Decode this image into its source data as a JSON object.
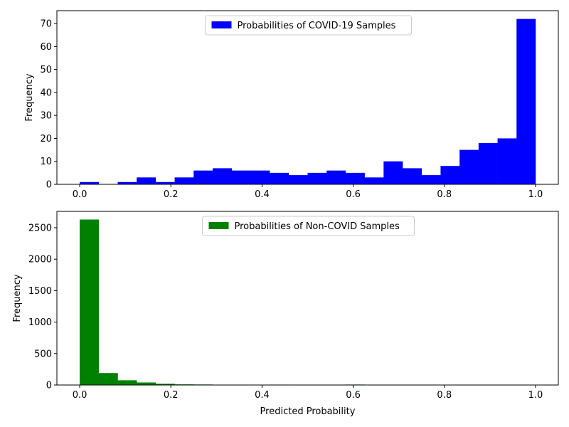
{
  "chart_data": [
    {
      "type": "bar",
      "xlabel": "",
      "ylabel": "Frequency",
      "xlim": [
        -0.05,
        1.05
      ],
      "ylim": [
        0,
        75.6
      ],
      "xticks": [
        0.0,
        0.2,
        0.4,
        0.6,
        0.8,
        1.0
      ],
      "xtick_labels": [
        "0.0",
        "0.2",
        "0.4",
        "0.6",
        "0.8",
        "1.0"
      ],
      "yticks": [
        0,
        10,
        20,
        30,
        40,
        50,
        60,
        70
      ],
      "ytick_labels": [
        "0",
        "10",
        "20",
        "30",
        "40",
        "50",
        "60",
        "70"
      ],
      "legend": "upper-center",
      "grid": false,
      "bin_range": [
        0,
        1
      ],
      "series": [
        {
          "name": "Probabilities of COVID-19 Samples",
          "color": "#0000ff",
          "values": [
            1,
            0,
            1,
            3,
            1,
            3,
            6,
            7,
            6,
            6,
            5,
            4,
            5,
            6,
            5,
            3,
            10,
            7,
            4,
            8,
            15,
            18,
            20,
            72
          ]
        }
      ]
    },
    {
      "type": "bar",
      "xlabel": "Predicted Probability",
      "ylabel": "Frequency",
      "xlim": [
        -0.05,
        1.05
      ],
      "ylim": [
        0,
        2760
      ],
      "xticks": [
        0.0,
        0.2,
        0.4,
        0.6,
        0.8,
        1.0
      ],
      "xtick_labels": [
        "0.0",
        "0.2",
        "0.4",
        "0.6",
        "0.8",
        "1.0"
      ],
      "yticks": [
        0,
        500,
        1000,
        1500,
        2000,
        2500
      ],
      "ytick_labels": [
        "0",
        "500",
        "1000",
        "1500",
        "2000",
        "2500"
      ],
      "legend": "upper-center",
      "grid": false,
      "bin_range": [
        0,
        1
      ],
      "series": [
        {
          "name": "Probabilities of Non-COVID Samples",
          "color": "#008000",
          "values": [
            2630,
            190,
            75,
            40,
            20,
            10,
            8,
            5,
            4,
            3,
            6,
            2,
            2,
            1,
            7,
            1,
            0,
            0,
            0,
            0,
            0,
            0,
            0,
            0
          ]
        }
      ]
    }
  ]
}
